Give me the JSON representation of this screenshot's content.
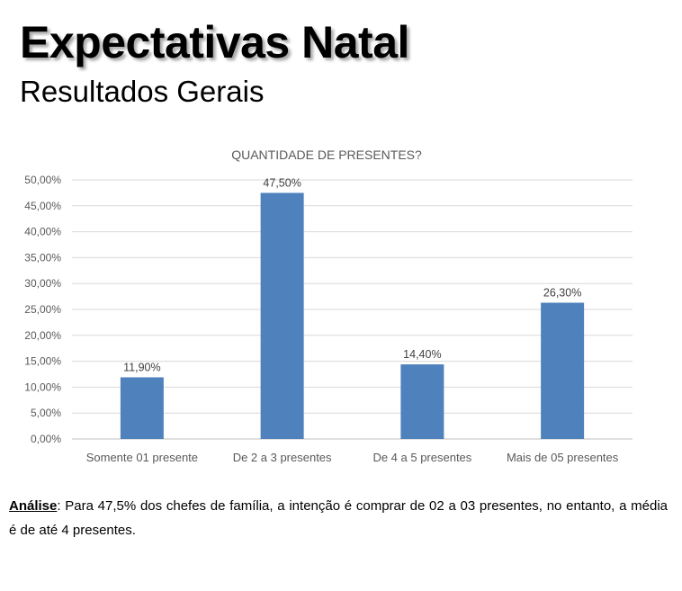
{
  "header": {
    "title": "Expectativas Natal",
    "subtitle": "Resultados Gerais"
  },
  "chart_data": {
    "type": "bar",
    "title": "QUANTIDADE DE PRESENTES?",
    "categories": [
      "Somente 01 presente",
      "De 2 a 3 presentes",
      "De 4 a 5 presentes",
      "Mais de 05 presentes"
    ],
    "values": [
      11.9,
      47.5,
      14.4,
      26.3
    ],
    "data_labels": [
      "11,90%",
      "47,50%",
      "14,40%",
      "26,30%"
    ],
    "ylim": [
      0,
      50
    ],
    "y_ticks": [
      "0,00%",
      "5,00%",
      "10,00%",
      "15,00%",
      "20,00%",
      "25,00%",
      "30,00%",
      "35,00%",
      "40,00%",
      "45,00%",
      "50,00%"
    ],
    "xlabel": "",
    "ylabel": "",
    "grid": true,
    "bar_color": "#4f81bd"
  },
  "analysis": {
    "label": "Análise",
    "text": ": Para 47,5% dos chefes de família, a intenção é comprar de 02 a 03 presentes, no entanto, a média é de até 4 presentes."
  }
}
